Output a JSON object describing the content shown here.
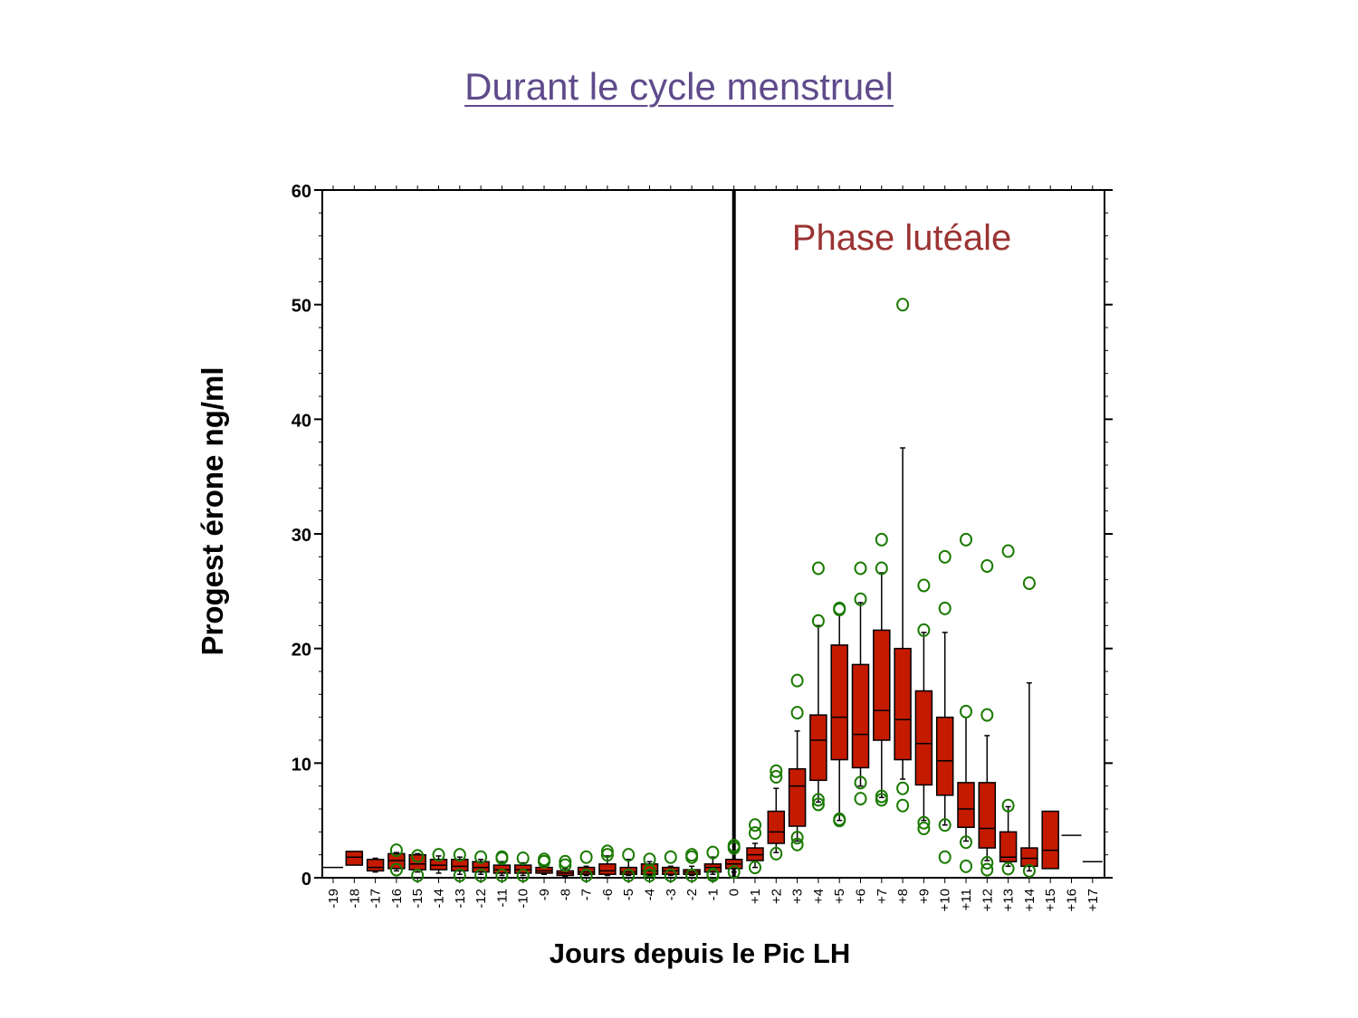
{
  "slide": {
    "title": "Durant le cycle menstruel"
  },
  "chart_data": {
    "type": "box",
    "title": "",
    "xlabel": "Jours depuis le Pic LH",
    "ylabel": "Progest érone  ng/ml",
    "ylim": [
      0,
      60
    ],
    "yticks": [
      0,
      10,
      20,
      30,
      40,
      50,
      60
    ],
    "annotation": "Phase lutéale",
    "lh_peak_day": "0",
    "categories": [
      "-19",
      "-18",
      "-17",
      "-16",
      "-15",
      "-14",
      "-13",
      "-12",
      "-11",
      "-10",
      "-9",
      "-8",
      "-7",
      "-6",
      "-5",
      "-4",
      "-3",
      "-2",
      "-1",
      "0",
      "+1",
      "+2",
      "+3",
      "+4",
      "+5",
      "+6",
      "+7",
      "+8",
      "+9",
      "+10",
      "+11",
      "+12",
      "+13",
      "+14",
      "+15",
      "+16",
      "+17"
    ],
    "boxes": [
      {
        "day": "-19",
        "median": 0.9
      },
      {
        "day": "-18",
        "q1": 1.1,
        "median": 1.8,
        "q3": 2.3
      },
      {
        "day": "-17",
        "q1": 0.6,
        "median": 0.9,
        "q3": 1.6,
        "whisker_low": 0.5,
        "whisker_high": 1.7
      },
      {
        "day": "-16",
        "q1": 0.8,
        "median": 1.5,
        "q3": 2.1,
        "whisker_low": 0.6,
        "whisker_high": 2.2,
        "outliers": [
          0.7,
          2.4
        ]
      },
      {
        "day": "-15",
        "q1": 0.7,
        "median": 1.2,
        "q3": 2.0,
        "whisker_low": 0.5,
        "whisker_high": 2.1,
        "outliers": [
          0.2,
          1.9
        ]
      },
      {
        "day": "-14",
        "q1": 0.7,
        "median": 1.1,
        "q3": 1.6,
        "whisker_low": 0.4,
        "whisker_high": 1.9,
        "outliers": [
          2.0
        ]
      },
      {
        "day": "-13",
        "q1": 0.6,
        "median": 1.0,
        "q3": 1.6,
        "whisker_low": 0.3,
        "whisker_high": 1.8,
        "outliers": [
          0.2,
          2.0
        ]
      },
      {
        "day": "-12",
        "q1": 0.5,
        "median": 0.9,
        "q3": 1.4,
        "whisker_low": 0.3,
        "whisker_high": 1.6,
        "outliers": [
          0.2,
          1.8
        ]
      },
      {
        "day": "-11",
        "q1": 0.4,
        "median": 0.7,
        "q3": 1.1,
        "whisker_low": 0.2,
        "whisker_high": 1.4,
        "outliers": [
          0.2,
          1.7,
          1.8
        ]
      },
      {
        "day": "-10",
        "q1": 0.4,
        "median": 0.7,
        "q3": 1.1,
        "whisker_low": 0.2,
        "whisker_high": 1.3,
        "outliers": [
          0.2,
          1.7
        ]
      },
      {
        "day": "-9",
        "q1": 0.4,
        "median": 0.6,
        "q3": 0.9,
        "whisker_low": 0.3,
        "whisker_high": 1.0,
        "outliers": [
          1.4,
          1.6
        ]
      },
      {
        "day": "-8",
        "q1": 0.2,
        "median": 0.4,
        "q3": 0.6,
        "whisker_low": 0.1,
        "whisker_high": 0.8,
        "outliers": [
          1.1,
          1.4
        ]
      },
      {
        "day": "-7",
        "q1": 0.3,
        "median": 0.5,
        "q3": 0.9,
        "whisker_low": 0.2,
        "whisker_high": 1.0,
        "outliers": [
          0.2,
          1.8
        ]
      },
      {
        "day": "-6",
        "q1": 0.3,
        "median": 0.6,
        "q3": 1.2,
        "whisker_low": 0.2,
        "whisker_high": 1.9,
        "outliers": [
          2.0,
          2.3
        ]
      },
      {
        "day": "-5",
        "q1": 0.3,
        "median": 0.5,
        "q3": 0.9,
        "whisker_low": 0.2,
        "whisker_high": 1.6,
        "outliers": [
          0.2,
          2.0
        ]
      },
      {
        "day": "-4",
        "q1": 0.3,
        "median": 0.6,
        "q3": 1.2,
        "whisker_low": 0.2,
        "whisker_high": 1.4,
        "outliers": [
          0.2,
          0.6,
          1.6
        ]
      },
      {
        "day": "-3",
        "q1": 0.3,
        "median": 0.6,
        "q3": 0.9,
        "whisker_low": 0.2,
        "whisker_high": 1.0,
        "outliers": [
          0.2,
          1.8
        ]
      },
      {
        "day": "-2",
        "q1": 0.3,
        "median": 0.5,
        "q3": 0.7,
        "whisker_low": 0.2,
        "whisker_high": 1.0,
        "outliers": [
          0.2,
          1.8,
          2.0
        ]
      },
      {
        "day": "-1",
        "q1": 0.5,
        "median": 0.9,
        "q3": 1.2,
        "whisker_low": 0.3,
        "whisker_high": 1.8,
        "outliers": [
          0.2,
          0.3,
          2.2
        ]
      },
      {
        "day": "0",
        "q1": 0.8,
        "median": 1.2,
        "q3": 1.6,
        "whisker_low": 0.5,
        "whisker_high": 2.2,
        "outliers": [
          0.5,
          2.6,
          2.8
        ]
      },
      {
        "day": "+1",
        "q1": 1.5,
        "median": 2.0,
        "q3": 2.6,
        "whisker_low": 0.9,
        "whisker_high": 3.0,
        "outliers": [
          0.9,
          3.9,
          4.6
        ]
      },
      {
        "day": "+2",
        "q1": 3.0,
        "median": 4.0,
        "q3": 5.8,
        "whisker_low": 2.2,
        "whisker_high": 7.8,
        "outliers": [
          2.1,
          8.8,
          9.3
        ]
      },
      {
        "day": "+3",
        "q1": 4.5,
        "median": 8.0,
        "q3": 9.5,
        "whisker_low": 3.2,
        "whisker_high": 12.8,
        "outliers": [
          2.9,
          3.5,
          14.4,
          17.2
        ]
      },
      {
        "day": "+4",
        "q1": 8.5,
        "median": 12.0,
        "q3": 14.2,
        "whisker_low": 6.6,
        "whisker_high": 22.0,
        "outliers": [
          6.4,
          6.8,
          22.4,
          27.0
        ]
      },
      {
        "day": "+5",
        "q1": 10.3,
        "median": 14.0,
        "q3": 20.3,
        "whisker_low": 5.0,
        "whisker_high": 23.0,
        "outliers": [
          5.0,
          5.1,
          23.4,
          23.5
        ]
      },
      {
        "day": "+6",
        "q1": 9.6,
        "median": 12.5,
        "q3": 18.6,
        "whisker_low": 8.0,
        "whisker_high": 24.0,
        "outliers": [
          6.9,
          8.3,
          24.3,
          27.0
        ]
      },
      {
        "day": "+7",
        "q1": 12.0,
        "median": 14.6,
        "q3": 21.6,
        "whisker_low": 7.0,
        "whisker_high": 26.6,
        "outliers": [
          6.8,
          7.1,
          27.0,
          29.5
        ]
      },
      {
        "day": "+8",
        "q1": 10.3,
        "median": 13.8,
        "q3": 20.0,
        "whisker_low": 8.6,
        "whisker_high": 37.5,
        "outliers": [
          6.3,
          7.8,
          50.0
        ]
      },
      {
        "day": "+9",
        "q1": 8.1,
        "median": 11.7,
        "q3": 16.3,
        "whisker_low": 5.0,
        "whisker_high": 21.4,
        "outliers": [
          4.3,
          4.8,
          21.6,
          25.5
        ]
      },
      {
        "day": "+10",
        "q1": 7.2,
        "median": 10.2,
        "q3": 14.0,
        "whisker_low": 4.6,
        "whisker_high": 21.4,
        "outliers": [
          1.8,
          4.6,
          23.5,
          28.0
        ]
      },
      {
        "day": "+11",
        "q1": 4.4,
        "median": 6.0,
        "q3": 8.3,
        "whisker_low": 3.2,
        "whisker_high": 14.0,
        "outliers": [
          1.0,
          3.1,
          14.5,
          29.5
        ]
      },
      {
        "day": "+12",
        "q1": 2.6,
        "median": 4.3,
        "q3": 8.3,
        "whisker_low": 1.5,
        "whisker_high": 12.4,
        "outliers": [
          0.7,
          1.3,
          14.2,
          27.2
        ]
      },
      {
        "day": "+13",
        "q1": 1.4,
        "median": 1.8,
        "q3": 4.0,
        "whisker_low": 1.0,
        "whisker_high": 6.2,
        "outliers": [
          0.8,
          6.3,
          28.5
        ]
      },
      {
        "day": "+14",
        "q1": 1.0,
        "median": 1.7,
        "q3": 2.6,
        "whisker_low": 0.6,
        "whisker_high": 17.0,
        "outliers": [
          0.6,
          25.7
        ]
      },
      {
        "day": "+15",
        "q1": 0.8,
        "median": 2.4,
        "q3": 5.8
      },
      {
        "day": "+16",
        "median": 3.7
      },
      {
        "day": "+17",
        "median": 1.4
      }
    ],
    "colors": {
      "box": "#c41a00",
      "outlier": "#1a7a00",
      "axis": "#000000",
      "title": "#5f4b8b",
      "annotation": "#9b3333"
    }
  }
}
